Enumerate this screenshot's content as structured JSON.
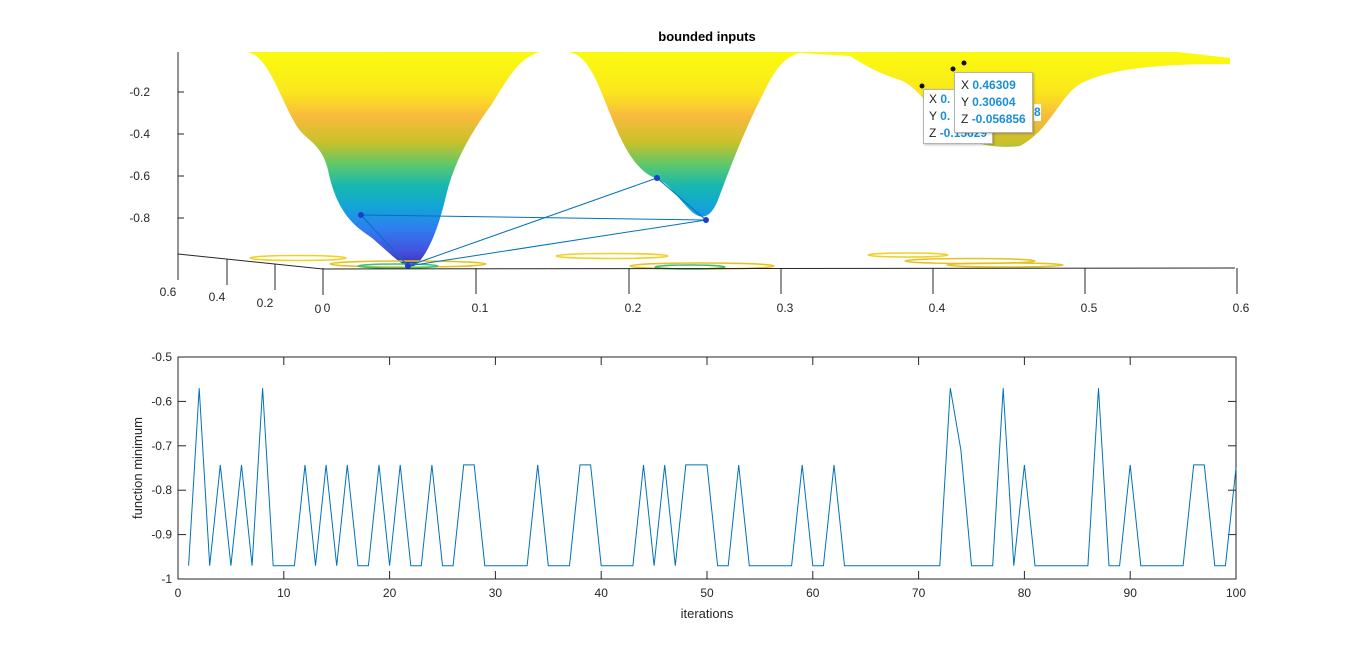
{
  "chart_data": [
    {
      "type": "surface",
      "title": "bounded inputs",
      "xticks": [
        "0",
        "0.1",
        "0.2",
        "0.3",
        "0.4",
        "0.5",
        "0.6"
      ],
      "yticks": [
        "0.6",
        "0.4",
        "0.2",
        "0"
      ],
      "zticks": [
        "-0.2",
        "-0.4",
        "-0.6",
        "-0.8"
      ],
      "xlim": [
        0,
        0.6
      ],
      "ylim": [
        0,
        0.6
      ],
      "zlim": [
        -1,
        0
      ],
      "colormap": "parula",
      "grid": false,
      "minima_points": [
        {
          "x": 0.05,
          "y": 0.05,
          "z": -0.97
        },
        {
          "x": 0.0,
          "y": 0.12,
          "z": -0.8
        },
        {
          "x": 0.2,
          "y": 0.1,
          "z": -0.62
        },
        {
          "x": 0.25,
          "y": 0.05,
          "z": -0.82
        }
      ],
      "datatips": [
        {
          "x_label": "X",
          "x": "0.46309",
          "y_label": "Y",
          "y": "0.30604",
          "z_label": "Z",
          "z": "-0.056856"
        },
        {
          "x_label": "X",
          "x": "0.",
          "y_label": "Y",
          "y": "0.",
          "z_label": "Z",
          "z": "-0.15629",
          "obscured_tail": "8"
        }
      ]
    },
    {
      "type": "line",
      "title": "",
      "xlabel": "iterations",
      "ylabel": "function minimum",
      "xlim": [
        0,
        100
      ],
      "ylim": [
        -1,
        -0.5
      ],
      "xticks": [
        "0",
        "10",
        "20",
        "30",
        "40",
        "50",
        "60",
        "70",
        "80",
        "90",
        "100"
      ],
      "yticks": [
        "-0.5",
        "-0.6",
        "-0.7",
        "-0.8",
        "-0.9",
        "-1"
      ],
      "line_color": "#0072bd",
      "x": [
        1,
        2,
        3,
        4,
        5,
        6,
        7,
        8,
        9,
        10,
        11,
        12,
        13,
        14,
        15,
        16,
        17,
        18,
        19,
        20,
        21,
        22,
        23,
        24,
        25,
        26,
        27,
        28,
        29,
        30,
        31,
        32,
        33,
        34,
        35,
        36,
        37,
        38,
        39,
        40,
        41,
        42,
        43,
        44,
        45,
        46,
        47,
        48,
        49,
        50,
        51,
        52,
        53,
        54,
        55,
        56,
        57,
        58,
        59,
        60,
        61,
        62,
        63,
        64,
        65,
        66,
        67,
        68,
        69,
        70,
        71,
        72,
        73,
        74,
        75,
        76,
        77,
        78,
        79,
        80,
        81,
        82,
        83,
        84,
        85,
        86,
        87,
        88,
        89,
        90,
        91,
        92,
        93,
        94,
        95,
        96,
        97,
        98,
        99,
        100
      ],
      "y": [
        -0.97,
        -0.57,
        -0.97,
        -0.743,
        -0.97,
        -0.743,
        -0.97,
        -0.57,
        -0.97,
        -0.97,
        -0.97,
        -0.743,
        -0.97,
        -0.743,
        -0.97,
        -0.743,
        -0.97,
        -0.97,
        -0.743,
        -0.97,
        -0.743,
        -0.97,
        -0.97,
        -0.743,
        -0.97,
        -0.97,
        -0.743,
        -0.743,
        -0.97,
        -0.97,
        -0.97,
        -0.97,
        -0.97,
        -0.743,
        -0.97,
        -0.97,
        -0.97,
        -0.743,
        -0.743,
        -0.97,
        -0.97,
        -0.97,
        -0.97,
        -0.743,
        -0.97,
        -0.743,
        -0.97,
        -0.743,
        -0.743,
        -0.743,
        -0.97,
        -0.97,
        -0.743,
        -0.97,
        -0.97,
        -0.97,
        -0.97,
        -0.97,
        -0.743,
        -0.97,
        -0.97,
        -0.743,
        -0.97,
        -0.97,
        -0.97,
        -0.97,
        -0.97,
        -0.97,
        -0.97,
        -0.97,
        -0.97,
        -0.97,
        -0.57,
        -0.71,
        -0.97,
        -0.97,
        -0.97,
        -0.57,
        -0.97,
        -0.743,
        -0.97,
        -0.97,
        -0.97,
        -0.97,
        -0.97,
        -0.97,
        -0.57,
        -0.97,
        -0.97,
        -0.743,
        -0.97,
        -0.97,
        -0.97,
        -0.97,
        -0.97,
        -0.743,
        -0.743,
        -0.97,
        -0.97,
        -0.75
      ]
    }
  ],
  "colors": {
    "axis": "#262626",
    "line": "#0072bd",
    "datatip_value": "#1a8fd6"
  }
}
